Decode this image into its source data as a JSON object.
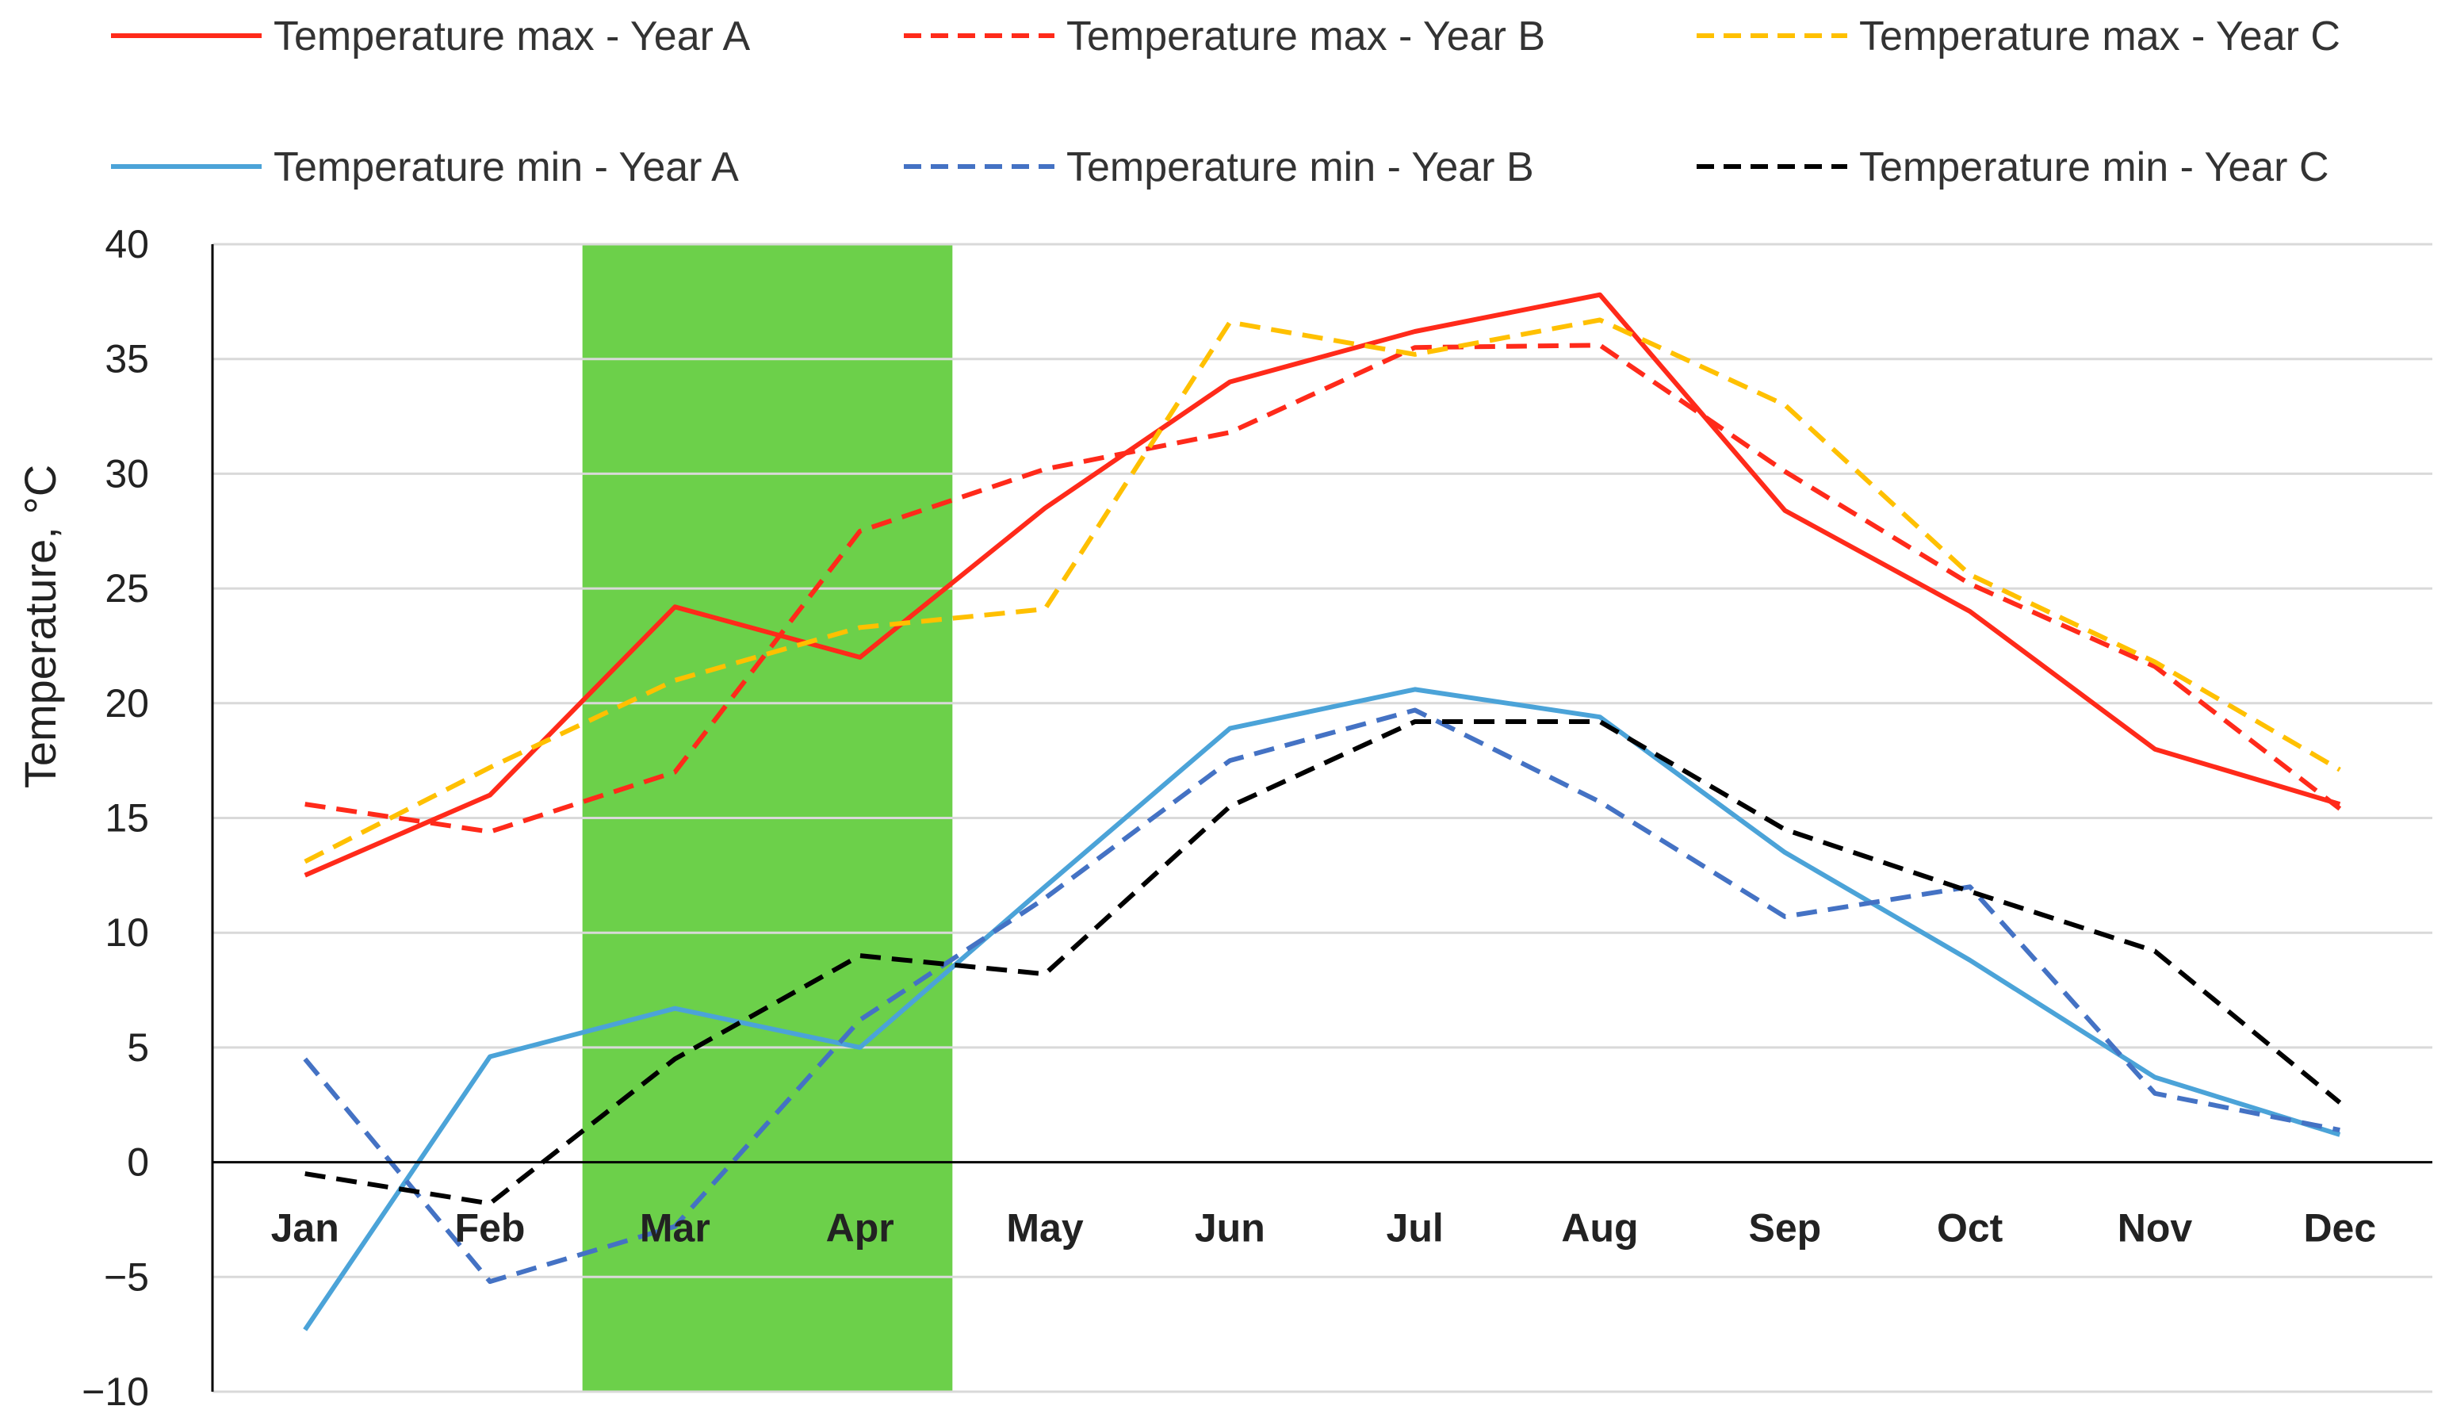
{
  "chart_data": {
    "type": "line",
    "title": "",
    "xlabel": "",
    "ylabel": "Temperature, °C",
    "ylim": [
      -10,
      40
    ],
    "ytick_step": 5,
    "yticks": [
      "40",
      "35",
      "30",
      "25",
      "20",
      "15",
      "10",
      "5",
      "0",
      "−5",
      "−10"
    ],
    "grid": true,
    "legend_position": "top",
    "categories": [
      "Jan",
      "Feb",
      "Mar",
      "Apr",
      "May",
      "Jun",
      "Jul",
      "Aug",
      "Sep",
      "Oct",
      "Nov",
      "Dec"
    ],
    "highlight_band": {
      "from": "Mar",
      "to": "Apr",
      "color": "#6cd04a"
    },
    "series": [
      {
        "name": "Temperature max - Year A",
        "color": "#ff2a1a",
        "dash": "solid",
        "values": [
          12.5,
          16.0,
          24.2,
          22.0,
          28.5,
          34.0,
          36.2,
          37.8,
          28.4,
          24.0,
          18.0,
          15.6
        ]
      },
      {
        "name": "Temperature max - Year B",
        "color": "#ff2a1a",
        "dash": "dashed",
        "values": [
          15.6,
          14.4,
          17.0,
          27.5,
          30.2,
          31.8,
          35.5,
          35.6,
          30.1,
          25.2,
          21.6,
          15.4
        ]
      },
      {
        "name": "Temperature max - Year C",
        "color": "#ffc000",
        "dash": "dashed",
        "values": [
          13.1,
          17.2,
          21.0,
          23.3,
          24.1,
          36.6,
          35.2,
          36.7,
          33.0,
          25.6,
          21.8,
          17.1
        ]
      },
      {
        "name": "Temperature min - Year A",
        "color": "#4ba3d8",
        "dash": "solid",
        "values": [
          -7.3,
          4.6,
          6.7,
          5.0,
          12.0,
          18.9,
          20.6,
          19.4,
          13.5,
          8.8,
          3.7,
          1.2
        ]
      },
      {
        "name": "Temperature min - Year B",
        "color": "#4472c4",
        "dash": "dashed",
        "values": [
          4.5,
          -5.2,
          -2.8,
          6.2,
          11.5,
          17.5,
          19.7,
          15.7,
          10.7,
          12.0,
          3.0,
          1.4
        ]
      },
      {
        "name": "Temperature min - Year C",
        "color": "#000000",
        "dash": "dashed",
        "values": [
          -0.5,
          -1.8,
          4.5,
          9.0,
          8.2,
          15.5,
          19.2,
          19.2,
          14.5,
          11.8,
          9.2,
          2.6
        ]
      }
    ]
  }
}
